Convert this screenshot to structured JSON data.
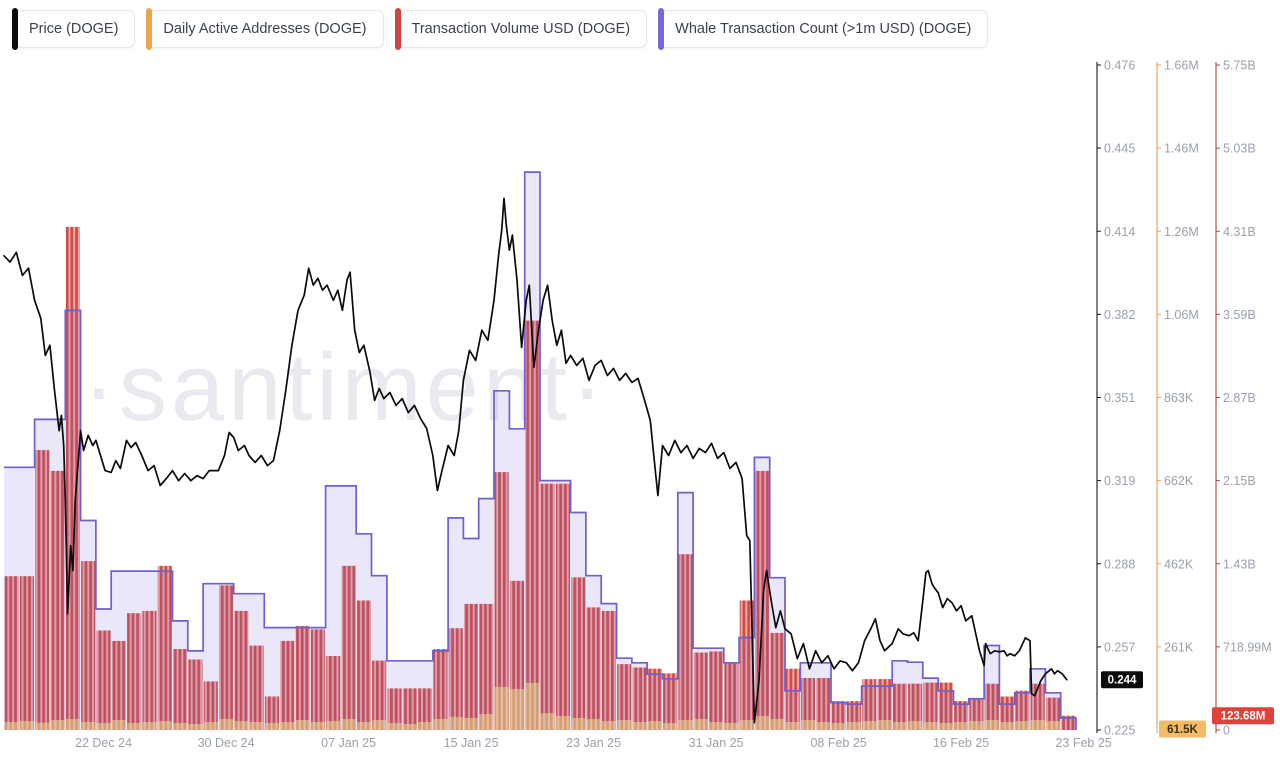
{
  "legend": {
    "items": [
      {
        "label": "Price (DOGE)",
        "color": "#0b0b0b"
      },
      {
        "label": "Daily Active Addresses (DOGE)",
        "color": "#e8a74e"
      },
      {
        "label": "Transaction Volume USD (DOGE)",
        "color": "#cc4540"
      },
      {
        "label": "Whale Transaction Count (>1m USD) (DOGE)",
        "color": "#7a68d8"
      }
    ]
  },
  "watermark": "·santiment·",
  "axes": {
    "price": {
      "color": "#1a1a1a",
      "ticks": [
        "0.476",
        "0.445",
        "0.414",
        "0.382",
        "0.351",
        "0.319",
        "0.288",
        "0.257",
        "0.225"
      ],
      "badge": "0.244",
      "badge_value": 0.244,
      "badge_bg": "#0b0b0b",
      "badge_fg": "#ffffff"
    },
    "addresses": {
      "color": "#e2a35c",
      "ticks": [
        "1.66M",
        "1.46M",
        "1.26M",
        "1.06M",
        "863K",
        "662K",
        "462K",
        "261K"
      ],
      "badge": "61.5K",
      "badge_value": 61.5,
      "badge_bg": "#f2bb66",
      "badge_fg": "#42300a"
    },
    "volume": {
      "color": "#a04a42",
      "ticks": [
        "5.75B",
        "5.03B",
        "4.31B",
        "3.59B",
        "2.87B",
        "2.15B",
        "1.43B",
        "718.99M",
        "0"
      ],
      "badge": "123.68M",
      "badge_value": 0.12368,
      "badge_bg": "#de423b",
      "badge_fg": "#ffffff"
    }
  },
  "x_axis": {
    "labels": [
      "22 Dec 24",
      "30 Dec 24",
      "07 Jan 25",
      "15 Jan 25",
      "23 Jan 25",
      "31 Jan 25",
      "08 Feb 25",
      "16 Feb 25",
      "23 Feb 25"
    ],
    "label_days": [
      6.5,
      14.5,
      22.5,
      30.5,
      38.5,
      46.5,
      54.5,
      62.5,
      70.5
    ]
  },
  "chart_data": {
    "type": "mixed-timeseries",
    "days": 70,
    "date_range_labels": [
      "22 Dec 24",
      "23 Feb 25"
    ],
    "grid": "off",
    "legend_position": "top-left",
    "series": [
      {
        "name": "Price (DOGE)",
        "type": "line",
        "color": "#0b0b0b",
        "axis": {
          "min": 0.225,
          "max": 0.476,
          "side": "right-1"
        },
        "points": [
          [
            0,
            0.404
          ],
          [
            0.4,
            0.4016
          ],
          [
            0.8,
            0.4053
          ],
          [
            1.2,
            0.3966
          ],
          [
            1.6,
            0.3993
          ],
          [
            2,
            0.3872
          ],
          [
            2.4,
            0.3804
          ],
          [
            2.7,
            0.3664
          ],
          [
            3,
            0.3702
          ],
          [
            3.3,
            0.3532
          ],
          [
            3.6,
            0.338
          ],
          [
            3.75,
            0.3437
          ],
          [
            3.9,
            0.3324
          ],
          [
            4,
            0.3116
          ],
          [
            4.15,
            0.2689
          ],
          [
            4.35,
            0.2946
          ],
          [
            4.5,
            0.2852
          ],
          [
            4.65,
            0.3116
          ],
          [
            4.8,
            0.3229
          ],
          [
            5,
            0.338
          ],
          [
            5.2,
            0.3305
          ],
          [
            5.5,
            0.3362
          ],
          [
            5.8,
            0.3324
          ],
          [
            6,
            0.3343
          ],
          [
            6.3,
            0.3286
          ],
          [
            6.6,
            0.3229
          ],
          [
            7,
            0.3222
          ],
          [
            7.3,
            0.3267
          ],
          [
            7.6,
            0.3237
          ],
          [
            8,
            0.3343
          ],
          [
            8.3,
            0.3316
          ],
          [
            8.6,
            0.3335
          ],
          [
            9,
            0.3286
          ],
          [
            9.4,
            0.3229
          ],
          [
            9.8,
            0.3248
          ],
          [
            10.2,
            0.3173
          ],
          [
            10.6,
            0.3199
          ],
          [
            11,
            0.3229
          ],
          [
            11.4,
            0.3191
          ],
          [
            11.8,
            0.3218
          ],
          [
            12.2,
            0.3191
          ],
          [
            12.6,
            0.321
          ],
          [
            13,
            0.3199
          ],
          [
            13.4,
            0.3229
          ],
          [
            14,
            0.3229
          ],
          [
            14.4,
            0.3286
          ],
          [
            14.7,
            0.3373
          ],
          [
            15,
            0.3354
          ],
          [
            15.3,
            0.3305
          ],
          [
            15.7,
            0.3324
          ],
          [
            16,
            0.3286
          ],
          [
            16.4,
            0.326
          ],
          [
            16.8,
            0.3286
          ],
          [
            17.2,
            0.3248
          ],
          [
            17.6,
            0.3267
          ],
          [
            18,
            0.338
          ],
          [
            18.4,
            0.3532
          ],
          [
            18.8,
            0.3702
          ],
          [
            19.2,
            0.3834
          ],
          [
            19.6,
            0.3891
          ],
          [
            19.9,
            0.3993
          ],
          [
            20.2,
            0.3929
          ],
          [
            20.5,
            0.3955
          ],
          [
            20.8,
            0.391
          ],
          [
            21.1,
            0.3929
          ],
          [
            21.5,
            0.3872
          ],
          [
            21.8,
            0.391
          ],
          [
            22.1,
            0.3834
          ],
          [
            22.4,
            0.3948
          ],
          [
            22.6,
            0.3978
          ],
          [
            22.9,
            0.3759
          ],
          [
            23.2,
            0.3675
          ],
          [
            23.5,
            0.3702
          ],
          [
            23.9,
            0.36
          ],
          [
            24.2,
            0.3494
          ],
          [
            24.5,
            0.3539
          ],
          [
            24.8,
            0.3501
          ],
          [
            25.2,
            0.3524
          ],
          [
            25.6,
            0.3475
          ],
          [
            26,
            0.3501
          ],
          [
            26.4,
            0.3448
          ],
          [
            26.8,
            0.3475
          ],
          [
            27.2,
            0.3426
          ],
          [
            27.6,
            0.3388
          ],
          [
            28,
            0.3286
          ],
          [
            28.3,
            0.3154
          ],
          [
            28.6,
            0.3229
          ],
          [
            29,
            0.3324
          ],
          [
            29.4,
            0.3286
          ],
          [
            29.7,
            0.338
          ],
          [
            30,
            0.357
          ],
          [
            30.4,
            0.3683
          ],
          [
            30.8,
            0.3645
          ],
          [
            31.2,
            0.3759
          ],
          [
            31.6,
            0.3721
          ],
          [
            32,
            0.3872
          ],
          [
            32.3,
            0.4042
          ],
          [
            32.5,
            0.4136
          ],
          [
            32.65,
            0.4257
          ],
          [
            32.8,
            0.4155
          ],
          [
            33,
            0.4061
          ],
          [
            33.2,
            0.4118
          ],
          [
            33.5,
            0.3948
          ],
          [
            33.8,
            0.3694
          ],
          [
            34.1,
            0.3872
          ],
          [
            34.3,
            0.3929
          ],
          [
            34.6,
            0.3619
          ],
          [
            34.9,
            0.3759
          ],
          [
            35.2,
            0.3872
          ],
          [
            35.5,
            0.3929
          ],
          [
            35.8,
            0.3796
          ],
          [
            36.1,
            0.3702
          ],
          [
            36.4,
            0.3759
          ],
          [
            36.7,
            0.3634
          ],
          [
            37,
            0.3664
          ],
          [
            37.4,
            0.3626
          ],
          [
            37.8,
            0.3653
          ],
          [
            38.2,
            0.357
          ],
          [
            38.6,
            0.3626
          ],
          [
            39,
            0.3645
          ],
          [
            39.4,
            0.3588
          ],
          [
            39.8,
            0.3615
          ],
          [
            40.2,
            0.357
          ],
          [
            40.6,
            0.3596
          ],
          [
            41,
            0.3562
          ],
          [
            41.4,
            0.3577
          ],
          [
            41.8,
            0.3501
          ],
          [
            42.2,
            0.3418
          ],
          [
            42.5,
            0.3248
          ],
          [
            42.7,
            0.3135
          ],
          [
            43,
            0.3324
          ],
          [
            43.4,
            0.3286
          ],
          [
            43.8,
            0.3343
          ],
          [
            44.2,
            0.3297
          ],
          [
            44.6,
            0.3324
          ],
          [
            45,
            0.3275
          ],
          [
            45.4,
            0.3313
          ],
          [
            45.8,
            0.3297
          ],
          [
            46.2,
            0.3332
          ],
          [
            46.6,
            0.3275
          ],
          [
            47,
            0.3297
          ],
          [
            47.4,
            0.3237
          ],
          [
            47.8,
            0.326
          ],
          [
            48.2,
            0.3199
          ],
          [
            48.5,
            0.2984
          ],
          [
            48.7,
            0.2965
          ],
          [
            48.8,
            0.2738
          ],
          [
            49,
            0.2277
          ],
          [
            49.3,
            0.2436
          ],
          [
            49.6,
            0.2776
          ],
          [
            49.8,
            0.2852
          ],
          [
            50.1,
            0.2738
          ],
          [
            50.4,
            0.2636
          ],
          [
            50.7,
            0.27
          ],
          [
            51,
            0.2632
          ],
          [
            51.4,
            0.2613
          ],
          [
            51.8,
            0.2519
          ],
          [
            52.2,
            0.2576
          ],
          [
            52.6,
            0.2481
          ],
          [
            53,
            0.2549
          ],
          [
            53.4,
            0.2504
          ],
          [
            53.8,
            0.253
          ],
          [
            54.2,
            0.2481
          ],
          [
            54.6,
            0.2511
          ],
          [
            55,
            0.2504
          ],
          [
            55.4,
            0.2474
          ],
          [
            55.8,
            0.2504
          ],
          [
            56.2,
            0.2587
          ],
          [
            56.6,
            0.2632
          ],
          [
            56.9,
            0.267
          ],
          [
            57.2,
            0.2587
          ],
          [
            57.5,
            0.2549
          ],
          [
            58,
            0.2576
          ],
          [
            58.4,
            0.2632
          ],
          [
            58.7,
            0.2613
          ],
          [
            59.1,
            0.2606
          ],
          [
            59.4,
            0.2617
          ],
          [
            59.7,
            0.2587
          ],
          [
            60,
            0.2738
          ],
          [
            60.2,
            0.2844
          ],
          [
            60.35,
            0.2852
          ],
          [
            60.6,
            0.2802
          ],
          [
            60.8,
            0.2783
          ],
          [
            61,
            0.2768
          ],
          [
            61.3,
            0.2712
          ],
          [
            61.6,
            0.2746
          ],
          [
            61.9,
            0.2731
          ],
          [
            62.2,
            0.27
          ],
          [
            62.5,
            0.2719
          ],
          [
            62.8,
            0.2662
          ],
          [
            63.2,
            0.2681
          ],
          [
            63.7,
            0.2549
          ],
          [
            64,
            0.2493
          ],
          [
            64.1,
            0.2576
          ],
          [
            64.4,
            0.2538
          ],
          [
            64.7,
            0.2549
          ],
          [
            65,
            0.2545
          ],
          [
            65.3,
            0.2549
          ],
          [
            65.5,
            0.253
          ],
          [
            65.7,
            0.2538
          ],
          [
            66,
            0.253
          ],
          [
            66.3,
            0.2549
          ],
          [
            66.7,
            0.2598
          ],
          [
            67,
            0.2587
          ],
          [
            67.1,
            0.2387
          ],
          [
            67.3,
            0.2379
          ],
          [
            67.7,
            0.2436
          ],
          [
            68,
            0.2462
          ],
          [
            68.4,
            0.2481
          ],
          [
            68.6,
            0.2462
          ],
          [
            68.8,
            0.2474
          ],
          [
            69.1,
            0.2462
          ],
          [
            69.4,
            0.244
          ]
        ]
      },
      {
        "name": "Daily Active Addresses (DOGE)",
        "type": "bar",
        "color": "#e9a75f",
        "axis": {
          "min": 61500,
          "max": 1660000,
          "side": "right-2"
        },
        "unit": "thousand addresses",
        "values_k": [
          80.8,
          83,
          79,
          85.6,
          88,
          80.8,
          78.4,
          85.6,
          78.4,
          80.8,
          83,
          78.4,
          76,
          80.8,
          88,
          83,
          80.8,
          78.4,
          80.8,
          85.6,
          80.8,
          83,
          88,
          80.8,
          85.6,
          78.4,
          76,
          80.8,
          88,
          93,
          90.4,
          100,
          165,
          160,
          174.6,
          102,
          95,
          90.4,
          88,
          83,
          85.6,
          80.8,
          83,
          78.4,
          85.6,
          88,
          80.8,
          78.4,
          85.6,
          95,
          88,
          80.8,
          85.6,
          80.8,
          78.4,
          80.8,
          83,
          85.6,
          80.8,
          83,
          80.8,
          78.4,
          80.8,
          83,
          85.6,
          80.8,
          83,
          85.6,
          83,
          61.5
        ]
      },
      {
        "name": "Transaction Volume USD (DOGE)",
        "type": "bar",
        "color": "#cf4b46",
        "axis": {
          "min": 0,
          "max": 5750000000,
          "side": "right-3"
        },
        "unit": "billion USD",
        "values_b": [
          1.33,
          1.33,
          2.42,
          2.24,
          4.35,
          1.46,
          0.86,
          0.77,
          1.01,
          1.03,
          1.42,
          0.7,
          0.61,
          0.42,
          1.25,
          1.03,
          0.73,
          0.29,
          0.77,
          0.9,
          0.87,
          0.64,
          1.42,
          1.12,
          0.6,
          0.36,
          0.36,
          0.36,
          0.7,
          0.88,
          1.09,
          1.09,
          2.23,
          1.29,
          3.54,
          2.13,
          2.13,
          1.32,
          1.06,
          1.03,
          0.57,
          0.54,
          0.53,
          0.49,
          1.52,
          0.67,
          0.68,
          0.58,
          1.12,
          2.24,
          0.84,
          0.53,
          0.45,
          0.45,
          0.25,
          0.25,
          0.44,
          0.44,
          0.4,
          0.4,
          0.41,
          0.41,
          0.25,
          0.27,
          0.4,
          0.29,
          0.34,
          0.4,
          0.28,
          0.124
        ]
      },
      {
        "name": "Whale Transaction Count (>1m USD) (DOGE)",
        "type": "step-area",
        "color": "#6e60cf",
        "axis_visible": false,
        "scale_note": "no numeric axis shown; values are fraction of plot height",
        "values_norm": [
          0.395,
          0.395,
          0.467,
          0.467,
          0.631,
          0.315,
          0.182,
          0.239,
          0.239,
          0.239,
          0.239,
          0.164,
          0.119,
          0.22,
          0.22,
          0.205,
          0.205,
          0.154,
          0.154,
          0.154,
          0.154,
          0.367,
          0.367,
          0.295,
          0.232,
          0.104,
          0.104,
          0.104,
          0.119,
          0.319,
          0.288,
          0.348,
          0.51,
          0.453,
          0.839,
          0.375,
          0.375,
          0.327,
          0.232,
          0.19,
          0.108,
          0.101,
          0.084,
          0.077,
          0.357,
          0.123,
          0.123,
          0.101,
          0.139,
          0.41,
          0.229,
          0.059,
          0.101,
          0.101,
          0.041,
          0.039,
          0.066,
          0.066,
          0.104,
          0.102,
          0.078,
          0.059,
          0.039,
          0.047,
          0.127,
          0.039,
          0.056,
          0.092,
          0.056,
          0.018
        ]
      }
    ]
  }
}
